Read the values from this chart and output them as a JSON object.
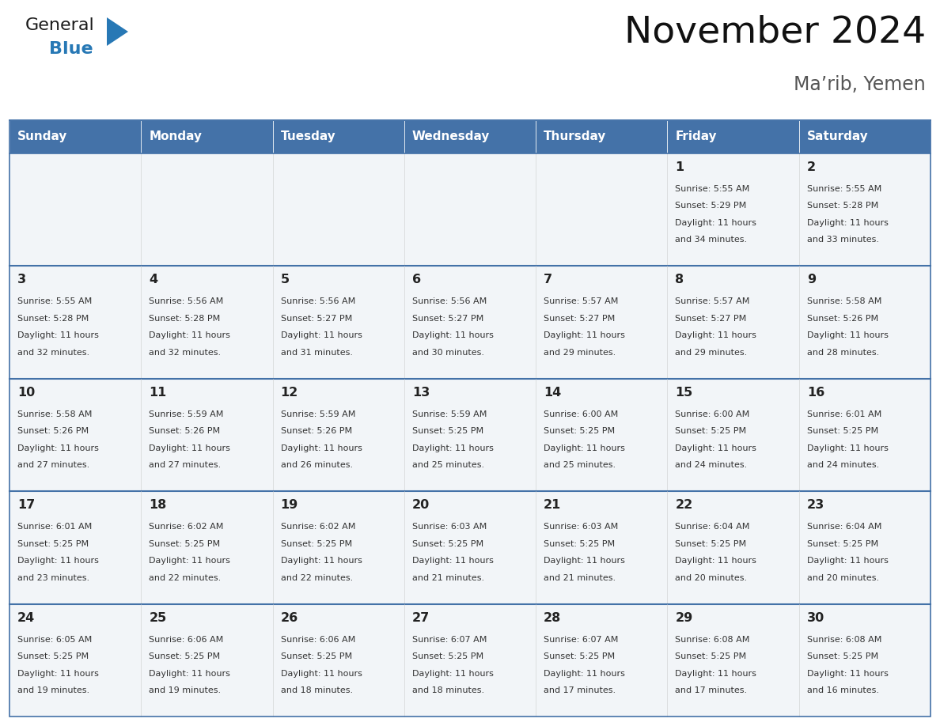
{
  "title": "November 2024",
  "subtitle": "Ma’rib, Yemen",
  "days_of_week": [
    "Sunday",
    "Monday",
    "Tuesday",
    "Wednesday",
    "Thursday",
    "Friday",
    "Saturday"
  ],
  "header_bg": "#4472a8",
  "header_text": "#ffffff",
  "cell_bg": "#f2f5f8",
  "border_color": "#4472a8",
  "separator_color": "#4472a8",
  "day_number_color": "#222222",
  "cell_text_color": "#333333",
  "title_color": "#111111",
  "subtitle_color": "#555555",
  "logo_general_color": "#1a1a1a",
  "logo_blue_color": "#2778b5",
  "calendar_data": [
    [
      {
        "day": null,
        "sunrise": null,
        "sunset": null,
        "daylight": null
      },
      {
        "day": null,
        "sunrise": null,
        "sunset": null,
        "daylight": null
      },
      {
        "day": null,
        "sunrise": null,
        "sunset": null,
        "daylight": null
      },
      {
        "day": null,
        "sunrise": null,
        "sunset": null,
        "daylight": null
      },
      {
        "day": null,
        "sunrise": null,
        "sunset": null,
        "daylight": null
      },
      {
        "day": 1,
        "sunrise": "5:55 AM",
        "sunset": "5:29 PM",
        "daylight": "11 hours and 34 minutes."
      },
      {
        "day": 2,
        "sunrise": "5:55 AM",
        "sunset": "5:28 PM",
        "daylight": "11 hours and 33 minutes."
      }
    ],
    [
      {
        "day": 3,
        "sunrise": "5:55 AM",
        "sunset": "5:28 PM",
        "daylight": "11 hours and 32 minutes."
      },
      {
        "day": 4,
        "sunrise": "5:56 AM",
        "sunset": "5:28 PM",
        "daylight": "11 hours and 32 minutes."
      },
      {
        "day": 5,
        "sunrise": "5:56 AM",
        "sunset": "5:27 PM",
        "daylight": "11 hours and 31 minutes."
      },
      {
        "day": 6,
        "sunrise": "5:56 AM",
        "sunset": "5:27 PM",
        "daylight": "11 hours and 30 minutes."
      },
      {
        "day": 7,
        "sunrise": "5:57 AM",
        "sunset": "5:27 PM",
        "daylight": "11 hours and 29 minutes."
      },
      {
        "day": 8,
        "sunrise": "5:57 AM",
        "sunset": "5:27 PM",
        "daylight": "11 hours and 29 minutes."
      },
      {
        "day": 9,
        "sunrise": "5:58 AM",
        "sunset": "5:26 PM",
        "daylight": "11 hours and 28 minutes."
      }
    ],
    [
      {
        "day": 10,
        "sunrise": "5:58 AM",
        "sunset": "5:26 PM",
        "daylight": "11 hours and 27 minutes."
      },
      {
        "day": 11,
        "sunrise": "5:59 AM",
        "sunset": "5:26 PM",
        "daylight": "11 hours and 27 minutes."
      },
      {
        "day": 12,
        "sunrise": "5:59 AM",
        "sunset": "5:26 PM",
        "daylight": "11 hours and 26 minutes."
      },
      {
        "day": 13,
        "sunrise": "5:59 AM",
        "sunset": "5:25 PM",
        "daylight": "11 hours and 25 minutes."
      },
      {
        "day": 14,
        "sunrise": "6:00 AM",
        "sunset": "5:25 PM",
        "daylight": "11 hours and 25 minutes."
      },
      {
        "day": 15,
        "sunrise": "6:00 AM",
        "sunset": "5:25 PM",
        "daylight": "11 hours and 24 minutes."
      },
      {
        "day": 16,
        "sunrise": "6:01 AM",
        "sunset": "5:25 PM",
        "daylight": "11 hours and 24 minutes."
      }
    ],
    [
      {
        "day": 17,
        "sunrise": "6:01 AM",
        "sunset": "5:25 PM",
        "daylight": "11 hours and 23 minutes."
      },
      {
        "day": 18,
        "sunrise": "6:02 AM",
        "sunset": "5:25 PM",
        "daylight": "11 hours and 22 minutes."
      },
      {
        "day": 19,
        "sunrise": "6:02 AM",
        "sunset": "5:25 PM",
        "daylight": "11 hours and 22 minutes."
      },
      {
        "day": 20,
        "sunrise": "6:03 AM",
        "sunset": "5:25 PM",
        "daylight": "11 hours and 21 minutes."
      },
      {
        "day": 21,
        "sunrise": "6:03 AM",
        "sunset": "5:25 PM",
        "daylight": "11 hours and 21 minutes."
      },
      {
        "day": 22,
        "sunrise": "6:04 AM",
        "sunset": "5:25 PM",
        "daylight": "11 hours and 20 minutes."
      },
      {
        "day": 23,
        "sunrise": "6:04 AM",
        "sunset": "5:25 PM",
        "daylight": "11 hours and 20 minutes."
      }
    ],
    [
      {
        "day": 24,
        "sunrise": "6:05 AM",
        "sunset": "5:25 PM",
        "daylight": "11 hours and 19 minutes."
      },
      {
        "day": 25,
        "sunrise": "6:06 AM",
        "sunset": "5:25 PM",
        "daylight": "11 hours and 19 minutes."
      },
      {
        "day": 26,
        "sunrise": "6:06 AM",
        "sunset": "5:25 PM",
        "daylight": "11 hours and 18 minutes."
      },
      {
        "day": 27,
        "sunrise": "6:07 AM",
        "sunset": "5:25 PM",
        "daylight": "11 hours and 18 minutes."
      },
      {
        "day": 28,
        "sunrise": "6:07 AM",
        "sunset": "5:25 PM",
        "daylight": "11 hours and 17 minutes."
      },
      {
        "day": 29,
        "sunrise": "6:08 AM",
        "sunset": "5:25 PM",
        "daylight": "11 hours and 17 minutes."
      },
      {
        "day": 30,
        "sunrise": "6:08 AM",
        "sunset": "5:25 PM",
        "daylight": "11 hours and 16 minutes."
      }
    ]
  ],
  "fig_width": 11.88,
  "fig_height": 9.18,
  "dpi": 100
}
